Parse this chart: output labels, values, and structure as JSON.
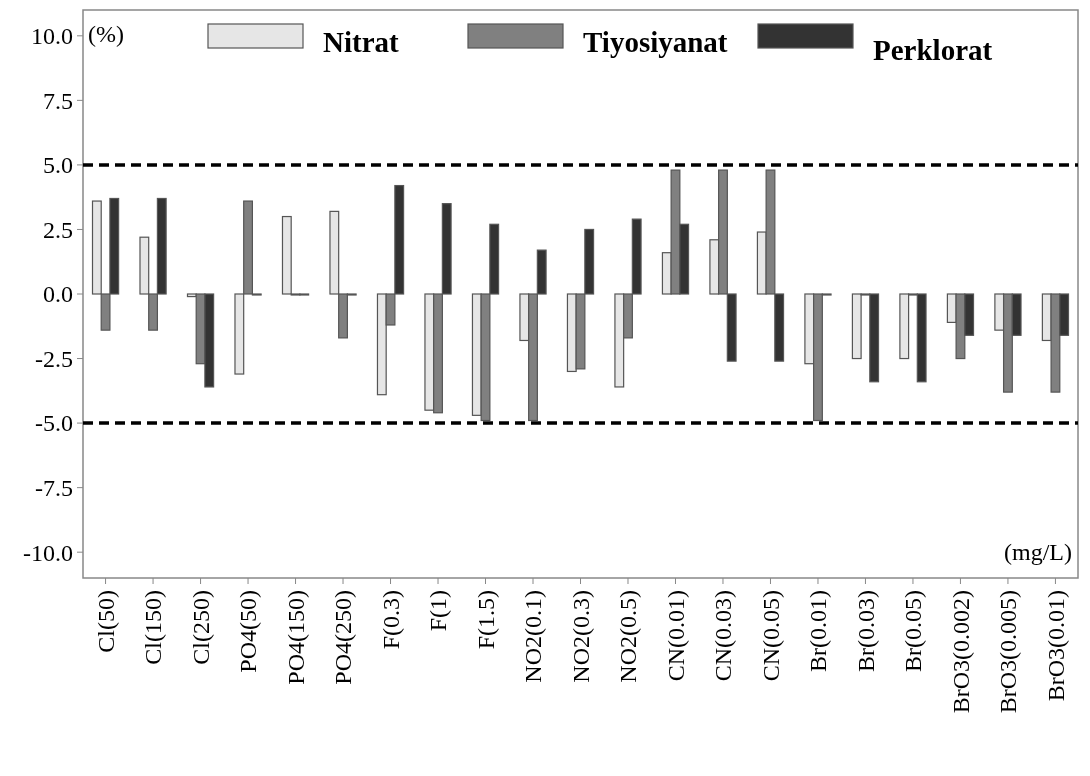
{
  "chart_data": {
    "type": "bar",
    "categories": [
      "Cl(50)",
      "Cl(150)",
      "Cl(250)",
      "PO4(50)",
      "PO4(150)",
      "PO4(250)",
      "F(0.3)",
      "F(1)",
      "F(1.5)",
      "NO2(0.1)",
      "NO2(0.3)",
      "NO2(0.5)",
      "CN(0.01)",
      "CN(0.03)",
      "CN(0.05)",
      "Br(0.01)",
      "Br(0.03)",
      "Br(0.05)",
      "BrO3(0.002)",
      "BrO3(0.005)",
      "BrO3(0.01)"
    ],
    "series": [
      {
        "name": "Nitrat",
        "color": "#e6e6e6",
        "values": [
          3.6,
          2.2,
          -0.1,
          -3.1,
          3.0,
          3.2,
          -3.9,
          -4.5,
          -4.7,
          -1.8,
          -3.0,
          -3.6,
          1.6,
          2.1,
          2.4,
          -2.7,
          -2.5,
          -2.5,
          -1.1,
          -1.4,
          -1.8
        ]
      },
      {
        "name": "Tiyosiyanat",
        "color": "#808080",
        "values": [
          -1.4,
          -1.4,
          -2.7,
          3.6,
          0,
          -1.7,
          -1.2,
          -4.6,
          -4.9,
          -4.9,
          -2.9,
          -1.7,
          4.8,
          4.8,
          4.8,
          -4.9,
          0,
          0,
          -2.5,
          -3.8,
          -3.8
        ]
      },
      {
        "name": "Perklorat",
        "color": "#333333",
        "values": [
          3.7,
          3.7,
          -3.6,
          0,
          0,
          0,
          4.2,
          3.5,
          2.7,
          1.7,
          2.5,
          2.9,
          2.7,
          -2.6,
          -2.6,
          0,
          -3.4,
          -3.4,
          -1.6,
          -1.6,
          -1.6
        ]
      }
    ],
    "ylim": [
      -11,
      11
    ],
    "yticks": [
      {
        "value": -10,
        "label": "-10.0"
      },
      {
        "value": -7.5,
        "label": "-7.5"
      },
      {
        "value": -5,
        "label": "-5.0"
      },
      {
        "value": -2.5,
        "label": "-2.5"
      },
      {
        "value": 0,
        "label": "0.0"
      },
      {
        "value": 2.5,
        "label": "2.5"
      },
      {
        "value": 5,
        "label": "5.0"
      },
      {
        "value": 7.5,
        "label": "7.5"
      },
      {
        "value": 10,
        "label": "10.0"
      }
    ],
    "ref_lines": [
      {
        "axis": "y",
        "value": 5,
        "color": "#000000",
        "line_style": "dashed"
      },
      {
        "axis": "y",
        "value": -5,
        "color": "#000000",
        "line_style": "dashed"
      }
    ],
    "annotations": [
      "(%)",
      "(mg/L)"
    ],
    "grid": false,
    "legend": "top"
  }
}
